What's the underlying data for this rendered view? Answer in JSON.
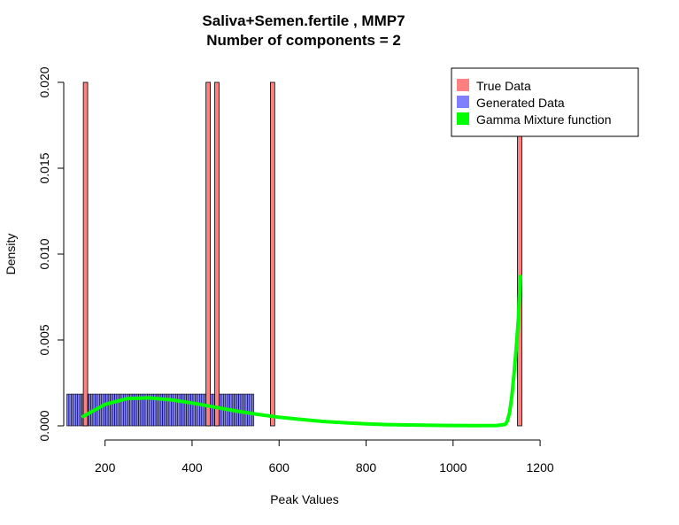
{
  "chart_data": {
    "type": "histogram+line",
    "title": "Saliva+Semen.fertile , MMP7",
    "subtitle": "Number of components =  2",
    "xlabel": "Peak Values",
    "ylabel": "Density",
    "xlim": [
      105,
      1210
    ],
    "ylim": [
      0,
      0.02
    ],
    "x_ticks": [
      200,
      400,
      600,
      800,
      1000,
      1200
    ],
    "y_ticks": [
      0.0,
      0.005,
      0.01,
      0.015,
      0.02
    ],
    "x_tick_labels": [
      "200",
      "400",
      "600",
      "800",
      "1000",
      "1200"
    ],
    "y_tick_labels": [
      "0.000",
      "0.005",
      "0.010",
      "0.015",
      "0.020"
    ],
    "colors": {
      "true_data": "#ff8080",
      "generated_data": "#8080ff",
      "mixture": "#00ff00"
    },
    "legend": {
      "placement": "top-right",
      "entries": [
        {
          "label": "True Data",
          "color": "#ff8080"
        },
        {
          "label": "Generated Data",
          "color": "#8080ff"
        },
        {
          "label": "Gamma Mixture function",
          "color": "#00ff00"
        }
      ]
    },
    "true_data": {
      "bin_width": 10,
      "bars": [
        {
          "start": 150,
          "density": 0.02
        },
        {
          "start": 432,
          "density": 0.02
        },
        {
          "start": 452,
          "density": 0.02
        },
        {
          "start": 580,
          "density": 0.02
        },
        {
          "start": 1148,
          "density": 0.02
        }
      ]
    },
    "generated_data": {
      "bin_width": 5,
      "range": [
        112,
        542
      ],
      "density": 0.00185
    },
    "gamma_mixture": {
      "x": [
        150,
        200,
        250,
        300,
        350,
        400,
        450,
        500,
        550,
        600,
        650,
        700,
        750,
        800,
        850,
        900,
        950,
        1000,
        1050,
        1100,
        1120,
        1125,
        1130,
        1135,
        1140,
        1145,
        1150,
        1152,
        1155
      ],
      "y": [
        0.00055,
        0.00125,
        0.00158,
        0.00163,
        0.00152,
        0.00133,
        0.0011,
        0.00087,
        0.00067,
        0.0005,
        0.00037,
        0.00026,
        0.00018,
        0.00012,
        7e-05,
        5e-05,
        3e-05,
        2e-05,
        1e-05,
        2e-05,
        8e-05,
        0.0003,
        0.0008,
        0.0017,
        0.003,
        0.0045,
        0.0062,
        0.0073,
        0.0087
      ]
    }
  }
}
